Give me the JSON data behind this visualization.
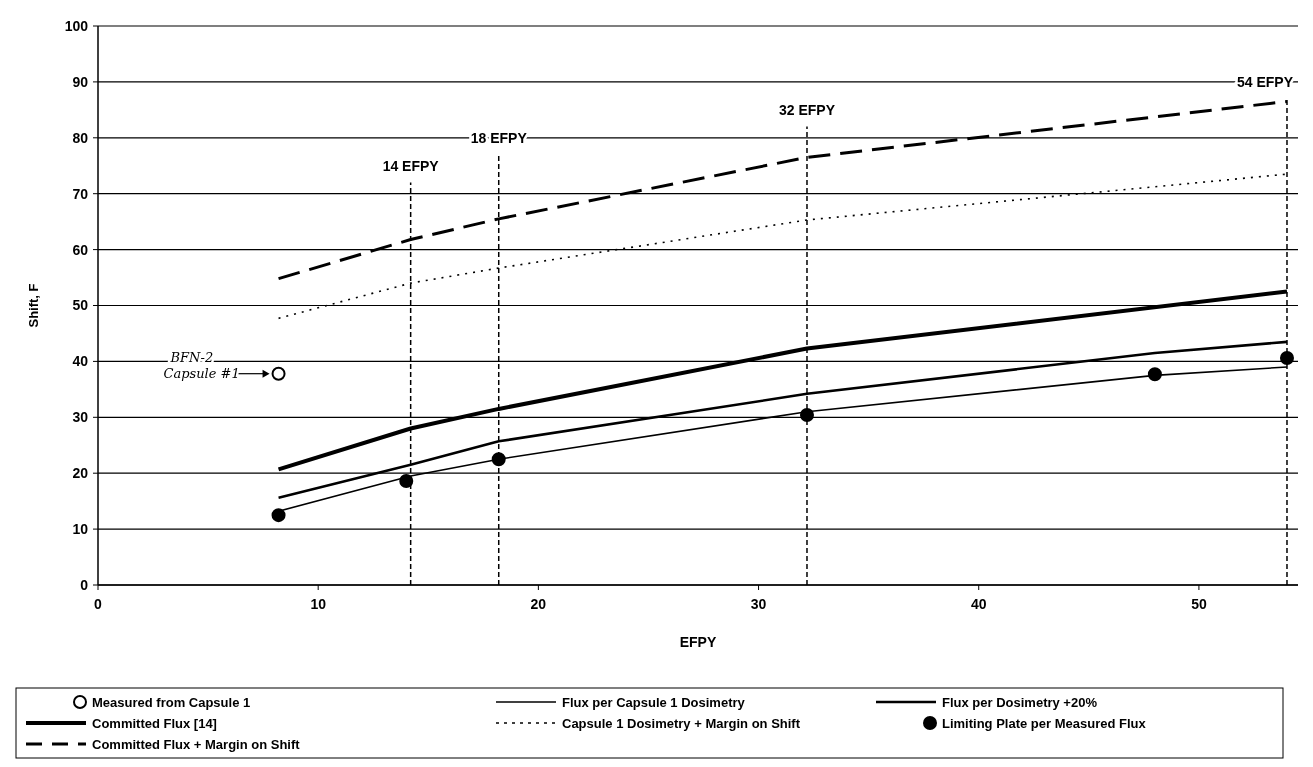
{
  "chart_data": {
    "type": "line",
    "xlabel": "EFPY",
    "ylabel": "Shift, F",
    "xlim": [
      0,
      54.5
    ],
    "ylim": [
      0,
      100
    ],
    "xticks": [
      0,
      10,
      20,
      30,
      40,
      50
    ],
    "yticks": [
      0,
      10,
      20,
      30,
      40,
      50,
      60,
      70,
      80,
      90,
      100
    ],
    "grid": "y",
    "legend": "bottom",
    "series": [
      {
        "name": "Measured from Capsule 1",
        "type": "scatter",
        "marker": "circle",
        "color": "#ffffff",
        "x": [
          8.2
        ],
        "values": [
          37.8
        ]
      },
      {
        "name": "Flux per Capsule 1 Dosimetry",
        "marker": "none",
        "line_style": "solid",
        "color": "#000000",
        "x": [
          8.2,
          14.2,
          18.2,
          32.2,
          48,
          54
        ],
        "values": [
          13.2,
          19.5,
          22.5,
          31,
          37.5,
          39
        ]
      },
      {
        "name": "Flux per Dosimetry +20%",
        "marker": "none",
        "line_style": "solid",
        "color": "#000000",
        "x": [
          8.2,
          14.2,
          18.2,
          32.2,
          48,
          54
        ],
        "values": [
          15.6,
          21.5,
          25.7,
          34.2,
          41.5,
          43.5
        ]
      },
      {
        "name": "Committed Flux [14]",
        "marker": "none",
        "line_style": "solid",
        "color": "#000000",
        "x": [
          8.2,
          14.2,
          18.2,
          32.2,
          54
        ],
        "values": [
          20.7,
          28,
          31.5,
          42.3,
          52.5
        ]
      },
      {
        "name": "Capsule 1 Dosimetry + Margin on Shift",
        "marker": "none",
        "line_style": "dotted",
        "color": "#000000",
        "x": [
          8.2,
          14.2,
          18.2,
          32.2,
          54
        ],
        "values": [
          47.7,
          54,
          56.7,
          65.3,
          73.5
        ]
      },
      {
        "name": "Limiting Plate per Measured Flux",
        "type": "scatter",
        "marker": "circle",
        "color": "#000000",
        "x": [
          8.2,
          14,
          18.2,
          32.2,
          48,
          54
        ],
        "values": [
          12.5,
          18.6,
          22.5,
          30.4,
          37.7,
          40.6
        ]
      },
      {
        "name": "Committed Flux + Margin on Shift",
        "marker": "none",
        "line_style": "dashed",
        "color": "#000000",
        "x": [
          8.2,
          14.2,
          18.2,
          32.2,
          54
        ],
        "values": [
          54.8,
          61.8,
          65.5,
          76.5,
          86.5
        ]
      }
    ],
    "ref_lines": [
      {
        "axis": "x",
        "value": 14.2,
        "label": "14 EFPY",
        "line_style": "dashed"
      },
      {
        "axis": "x",
        "value": 18.2,
        "label": "18 EFPY",
        "line_style": "dashed"
      },
      {
        "axis": "x",
        "value": 32.2,
        "label": "32 EFPY",
        "line_style": "dashed"
      },
      {
        "axis": "x",
        "value": 54,
        "label": "54 EFPY",
        "line_style": "dashed"
      }
    ],
    "annotations": [
      {
        "text": "BFN-2 Capsule #1",
        "x": 8.2,
        "y": 37.8
      }
    ]
  }
}
